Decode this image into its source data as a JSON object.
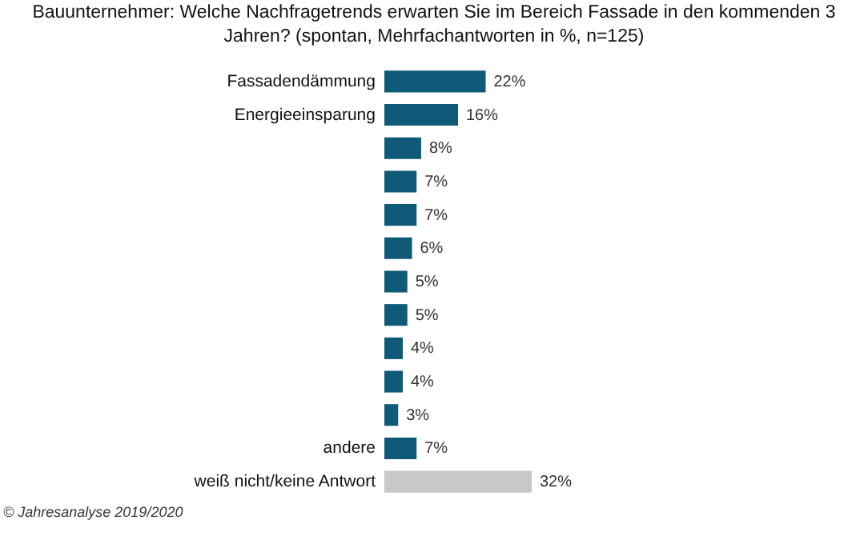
{
  "chart_data": {
    "type": "bar",
    "orientation": "horizontal",
    "title": "Bauunternehmer:  Welche Nachfragetrends  erwarten Sie im Bereich Fassade in den kommenden  3 Jahren? (spontan, Mehrfachantworten in %, n=125)",
    "categories": [
      "Fassadendämmung",
      "Energieeinsparung",
      null,
      null,
      null,
      null,
      null,
      null,
      null,
      null,
      null,
      "andere",
      "weiß nicht/keine Antwort"
    ],
    "values": [
      22,
      16,
      8,
      7,
      7,
      6,
      5,
      5,
      4,
      4,
      3,
      7,
      32
    ],
    "colors": [
      "#0f5a78",
      "#0f5a78",
      "#0f5a78",
      "#0f5a78",
      "#0f5a78",
      "#0f5a78",
      "#0f5a78",
      "#0f5a78",
      "#0f5a78",
      "#0f5a78",
      "#0f5a78",
      "#0f5a78",
      "#c8c8c8"
    ],
    "value_labels": [
      "22%",
      "16%",
      "8%",
      "7%",
      "7%",
      "6%",
      "5%",
      "5%",
      "4%",
      "4%",
      "3%",
      "7%",
      "32%"
    ],
    "tick_labels": "y",
    "annotations": [
      "© Jahresanalyse 2019/2020"
    ]
  }
}
